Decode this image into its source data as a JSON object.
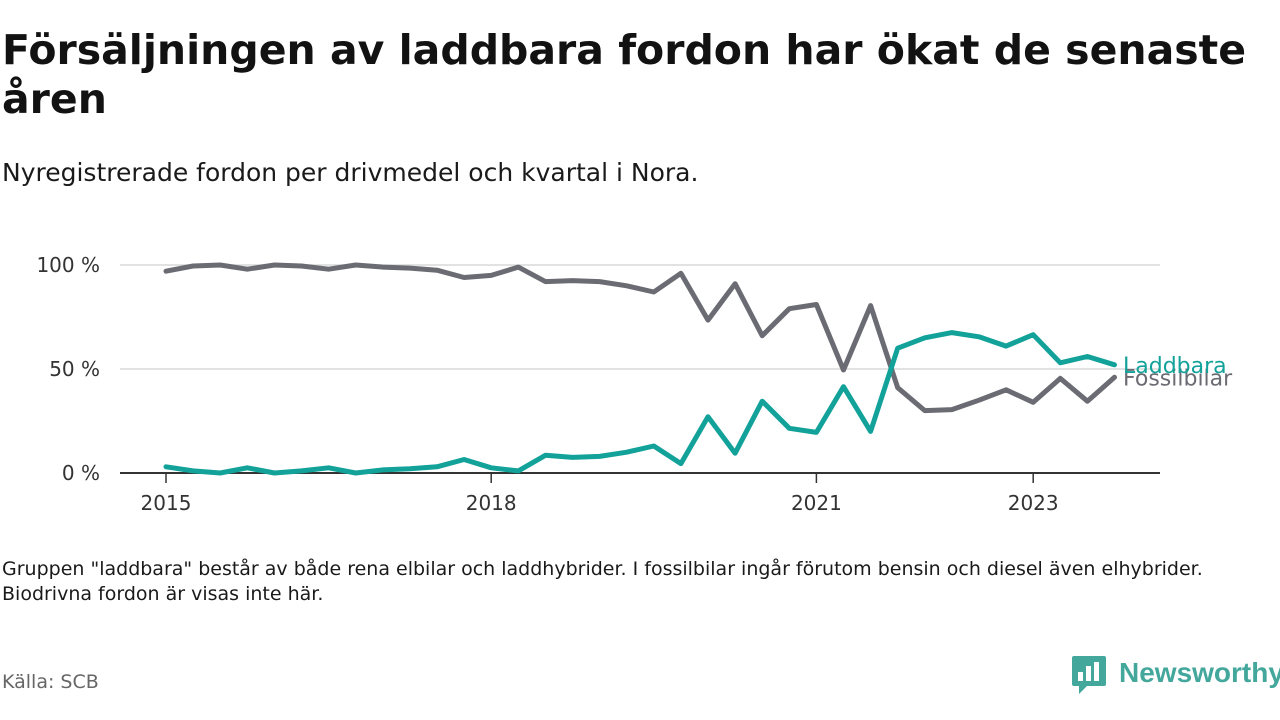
{
  "title": "Försäljningen av laddbara fordon har ökat de senaste åren",
  "subtitle": "Nyregistrerade fordon per drivmedel och kvartal i Nora.",
  "note": "Gruppen \"laddbara\" består av både rena elbilar och laddhybrider. I fossilbilar ingår förutom bensin och diesel även elhybrider. Biodrivna fordon är visas inte här.",
  "source": "Källa: SCB",
  "brand": {
    "name": "Newsworthy"
  },
  "colors": {
    "laddbara": "#12a29a",
    "fossilbilar": "#6b6b73",
    "grid": "#d9d9d9",
    "axis": "#333333",
    "brand": "#43a79c"
  },
  "chart_data": {
    "type": "line",
    "title": "Försäljningen av laddbara fordon har ökat de senaste åren",
    "subtitle": "Nyregistrerade fordon per drivmedel och kvartal i Nora.",
    "xlabel": "",
    "ylabel": "",
    "x_start": "2015 Q1",
    "ylim": [
      0,
      100
    ],
    "yticks": [
      {
        "value": 0,
        "label": "0 %"
      },
      {
        "value": 50,
        "label": "50 %"
      },
      {
        "value": 100,
        "label": "100 %"
      }
    ],
    "xticks": [
      {
        "index": 0,
        "label": "2015"
      },
      {
        "index": 12,
        "label": "2018"
      },
      {
        "index": 24,
        "label": "2021"
      },
      {
        "index": 32,
        "label": "2023"
      }
    ],
    "grid": true,
    "series": [
      {
        "name": "Fossilbilar",
        "color": "#6b6b73",
        "values": [
          97,
          99.5,
          100,
          98,
          100,
          99.5,
          98,
          100,
          99,
          98.5,
          97.5,
          94,
          95,
          99,
          92,
          92.5,
          92,
          90,
          87,
          96,
          73.5,
          91,
          66,
          79,
          81,
          49.5,
          80.5,
          41,
          30,
          30.5,
          35,
          40,
          34,
          45.5,
          34.5,
          46
        ]
      },
      {
        "name": "Laddbara",
        "color": "#12a29a",
        "values": [
          3,
          1,
          0,
          2.5,
          0,
          1,
          2.5,
          0,
          1.5,
          2,
          3,
          6.5,
          2.5,
          1,
          8.5,
          7.5,
          8,
          10,
          13,
          4.5,
          27,
          9.5,
          34.5,
          21.5,
          19.5,
          41.5,
          20,
          60,
          65,
          67.5,
          65.5,
          61,
          66.5,
          53,
          56,
          52
        ]
      }
    ]
  }
}
